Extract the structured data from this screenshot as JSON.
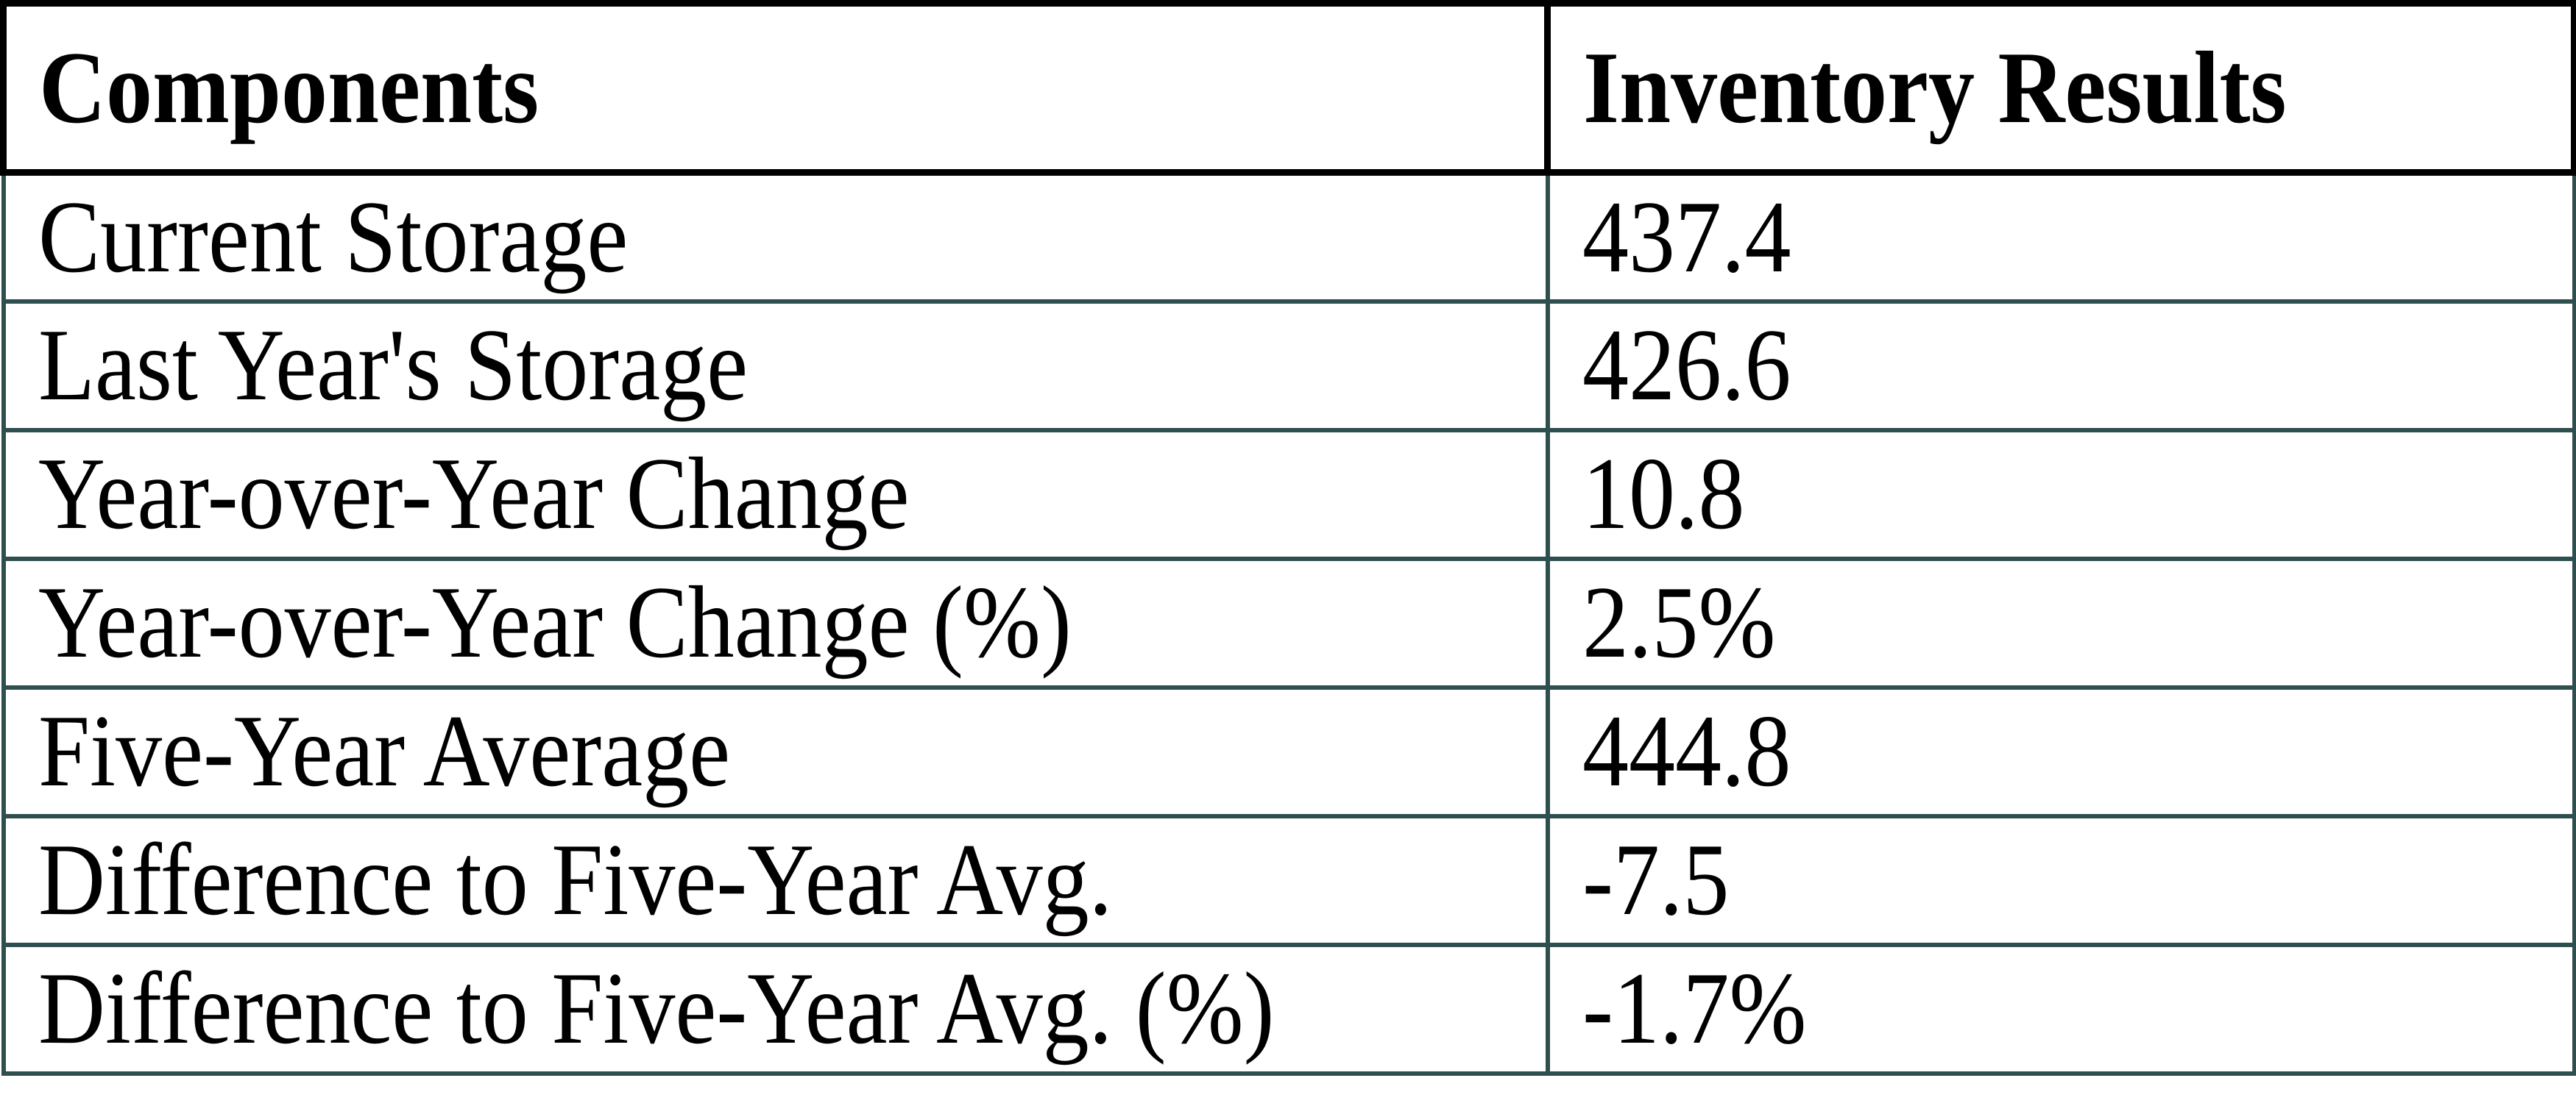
{
  "table": {
    "columns": [
      {
        "label": "Components"
      },
      {
        "label": "Inventory Results"
      }
    ],
    "rows": [
      {
        "component": "Current Storage",
        "result": "437.4"
      },
      {
        "component": "Last Year's Storage",
        "result": "426.6"
      },
      {
        "component": "Year-over-Year Change",
        "result": "10.8"
      },
      {
        "component": "Year-over-Year Change (%)",
        "result": "2.5%"
      },
      {
        "component": "Five-Year Average",
        "result": "444.8"
      },
      {
        "component": "Difference to Five-Year Avg.",
        "result": "-7.5"
      },
      {
        "component": "Difference to Five-Year Avg. (%)",
        "result": "-1.7%"
      }
    ],
    "colors": {
      "header_border": "#000000",
      "body_border": "#2F4F4F",
      "text": "#000000",
      "background": "#FFFFFF"
    }
  },
  "chart_data": {
    "type": "table",
    "title": "Inventory Results",
    "columns": [
      "Components",
      "Inventory Results"
    ],
    "rows": [
      [
        "Current Storage",
        437.4
      ],
      [
        "Last Year's Storage",
        426.6
      ],
      [
        "Year-over-Year Change",
        10.8
      ],
      [
        "Year-over-Year Change (%)",
        "2.5%"
      ],
      [
        "Five-Year Average",
        444.8
      ],
      [
        "Difference to Five-Year Avg.",
        -7.5
      ],
      [
        "Difference to Five-Year Avg. (%)",
        "-1.7%"
      ]
    ]
  }
}
